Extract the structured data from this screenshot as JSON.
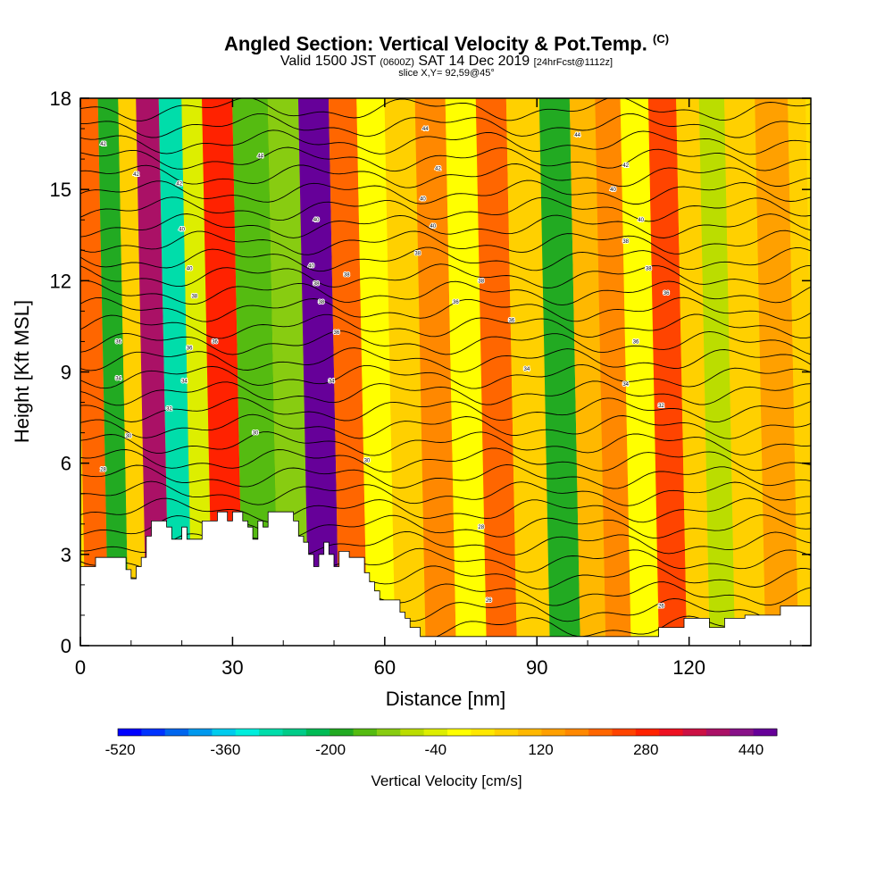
{
  "header": {
    "title": "Angled Section: Vertical Velocity & Pot.Temp.",
    "title_unit": "(C)",
    "valid_prefix": "Valid 1500 JST",
    "valid_zulu": "(0600Z)",
    "valid_date": "SAT 14 Dec 2019",
    "forecast": "[24hrFcst@1112z]",
    "slice": "slice X,Y= 92,59@45°"
  },
  "chart_data": {
    "type": "heatmap",
    "xlabel": "Distance [nm]",
    "ylabel": "Height [Kft MSL]",
    "xlim": [
      0,
      144
    ],
    "ylim": [
      0,
      18
    ],
    "x_ticks": [
      "0",
      "30",
      "60",
      "90",
      "120"
    ],
    "y_ticks": [
      "0",
      "3",
      "6",
      "9",
      "12",
      "15",
      "18"
    ],
    "colorbar": {
      "label": "Vertical Velocity [cm/s]",
      "tick_labels": [
        "-520",
        "-360",
        "-200",
        "-40",
        "120",
        "280",
        "440"
      ],
      "levels": [
        -520,
        440
      ],
      "colors": [
        "#0000ff",
        "#0033ff",
        "#0066ee",
        "#0099ee",
        "#00ccee",
        "#00eedd",
        "#00ddaa",
        "#00cc88",
        "#00bb55",
        "#22aa22",
        "#55bb11",
        "#88cc11",
        "#bbdd00",
        "#ddee00",
        "#ffff00",
        "#ffe800",
        "#ffd000",
        "#ffb800",
        "#ffa000",
        "#ff8800",
        "#ff6600",
        "#ff4400",
        "#ff2200",
        "#ee1122",
        "#cc1144",
        "#aa1166",
        "#881188",
        "#660099"
      ]
    },
    "field_bands": [
      {
        "x": 2,
        "value": 180
      },
      {
        "x": 7,
        "value": -200
      },
      {
        "x": 10,
        "value": 40
      },
      {
        "x": 14,
        "value": 360
      },
      {
        "x": 19,
        "value": -320
      },
      {
        "x": 23,
        "value": -60
      },
      {
        "x": 27,
        "value": 260
      },
      {
        "x": 35,
        "value": -160
      },
      {
        "x": 41,
        "value": -120
      },
      {
        "x": 47,
        "value": 440
      },
      {
        "x": 53,
        "value": 200
      },
      {
        "x": 58,
        "value": -40
      },
      {
        "x": 64,
        "value": 40
      },
      {
        "x": 70,
        "value": 140
      },
      {
        "x": 76,
        "value": -20
      },
      {
        "x": 82,
        "value": 200
      },
      {
        "x": 88,
        "value": 40
      },
      {
        "x": 95,
        "value": -200
      },
      {
        "x": 100,
        "value": 80
      },
      {
        "x": 105,
        "value": 160
      },
      {
        "x": 110,
        "value": -40
      },
      {
        "x": 116,
        "value": 220
      },
      {
        "x": 121,
        "value": 60
      },
      {
        "x": 125,
        "value": -100
      },
      {
        "x": 131,
        "value": 60
      },
      {
        "x": 137,
        "value": 120
      },
      {
        "x": 144,
        "value": 60
      }
    ],
    "terrain": [
      [
        0,
        2.6
      ],
      [
        3,
        2.6
      ],
      [
        3,
        2.9
      ],
      [
        9,
        2.9
      ],
      [
        9,
        2.5
      ],
      [
        10,
        2.5
      ],
      [
        10,
        2.2
      ],
      [
        11,
        2.2
      ],
      [
        11,
        2.6
      ],
      [
        12,
        2.6
      ],
      [
        12,
        2.9
      ],
      [
        13,
        2.9
      ],
      [
        13,
        3.6
      ],
      [
        14,
        3.6
      ],
      [
        14,
        4.1
      ],
      [
        17,
        4.1
      ],
      [
        17,
        3.9
      ],
      [
        18,
        3.9
      ],
      [
        18,
        3.5
      ],
      [
        20,
        3.5
      ],
      [
        20,
        3.9
      ],
      [
        21,
        3.9
      ],
      [
        21,
        3.5
      ],
      [
        24,
        3.5
      ],
      [
        24,
        4.1
      ],
      [
        27,
        4.1
      ],
      [
        27,
        4.4
      ],
      [
        29,
        4.4
      ],
      [
        29,
        4.1
      ],
      [
        30,
        4.1
      ],
      [
        30,
        4.4
      ],
      [
        32,
        4.4
      ],
      [
        32,
        4.1
      ],
      [
        33,
        4.1
      ],
      [
        33,
        3.9
      ],
      [
        34,
        3.9
      ],
      [
        34,
        3.5
      ],
      [
        35,
        3.5
      ],
      [
        35,
        4.1
      ],
      [
        36,
        4.1
      ],
      [
        36,
        3.9
      ],
      [
        37,
        3.9
      ],
      [
        37,
        4.4
      ],
      [
        42,
        4.4
      ],
      [
        42,
        4.1
      ],
      [
        43,
        4.1
      ],
      [
        43,
        3.6
      ],
      [
        44,
        3.6
      ],
      [
        44,
        3.4
      ],
      [
        45,
        3.4
      ],
      [
        45,
        3.0
      ],
      [
        46,
        3.0
      ],
      [
        46,
        2.6
      ],
      [
        47,
        2.6
      ],
      [
        47,
        3.0
      ],
      [
        48,
        3.0
      ],
      [
        48,
        3.4
      ],
      [
        49,
        3.4
      ],
      [
        49,
        3.0
      ],
      [
        50,
        3.0
      ],
      [
        50,
        2.6
      ],
      [
        51,
        2.6
      ],
      [
        51,
        3.1
      ],
      [
        53,
        3.1
      ],
      [
        53,
        2.9
      ],
      [
        56,
        2.9
      ],
      [
        56,
        2.4
      ],
      [
        57,
        2.4
      ],
      [
        57,
        2.1
      ],
      [
        58,
        2.1
      ],
      [
        58,
        1.8
      ],
      [
        59,
        1.8
      ],
      [
        59,
        1.5
      ],
      [
        63,
        1.5
      ],
      [
        63,
        1.1
      ],
      [
        64,
        1.1
      ],
      [
        64,
        0.9
      ],
      [
        65,
        0.9
      ],
      [
        65,
        0.6
      ],
      [
        67,
        0.6
      ],
      [
        67,
        0.3
      ],
      [
        114,
        0.3
      ],
      [
        114,
        0.6
      ],
      [
        119,
        0.6
      ],
      [
        119,
        0.9
      ],
      [
        124,
        0.9
      ],
      [
        124,
        0.6
      ],
      [
        127,
        0.6
      ],
      [
        127,
        0.9
      ],
      [
        131,
        0.9
      ],
      [
        131,
        1.0
      ],
      [
        138,
        1.0
      ],
      [
        138,
        1.3
      ],
      [
        144,
        1.3
      ]
    ],
    "theta_contours": {
      "count": 32,
      "h0": 0.6,
      "spacing": 0.55
    },
    "contour_labels": [
      {
        "x": 4.5,
        "y": 16.5,
        "text": "42"
      },
      {
        "x": 11,
        "y": 15.5,
        "text": "42"
      },
      {
        "x": 19.5,
        "y": 15.2,
        "text": "42"
      },
      {
        "x": 20,
        "y": 13.7,
        "text": "40"
      },
      {
        "x": 21.5,
        "y": 12.4,
        "text": "40"
      },
      {
        "x": 22.5,
        "y": 11.5,
        "text": "38"
      },
      {
        "x": 26.5,
        "y": 10.0,
        "text": "36"
      },
      {
        "x": 21.5,
        "y": 9.8,
        "text": "36"
      },
      {
        "x": 20.5,
        "y": 8.7,
        "text": "34"
      },
      {
        "x": 17.5,
        "y": 7.8,
        "text": "32"
      },
      {
        "x": 7.5,
        "y": 10.0,
        "text": "36"
      },
      {
        "x": 7.5,
        "y": 8.8,
        "text": "34"
      },
      {
        "x": 9.5,
        "y": 6.9,
        "text": "30"
      },
      {
        "x": 4.5,
        "y": 5.8,
        "text": "28"
      },
      {
        "x": 35.5,
        "y": 16.1,
        "text": "44"
      },
      {
        "x": 34.5,
        "y": 7.0,
        "text": "30"
      },
      {
        "x": 46.5,
        "y": 14.0,
        "text": "40"
      },
      {
        "x": 45.5,
        "y": 12.5,
        "text": "40"
      },
      {
        "x": 46.5,
        "y": 11.9,
        "text": "38"
      },
      {
        "x": 47.5,
        "y": 11.3,
        "text": "38"
      },
      {
        "x": 52.5,
        "y": 12.2,
        "text": "38"
      },
      {
        "x": 50.5,
        "y": 10.3,
        "text": "36"
      },
      {
        "x": 49.5,
        "y": 8.7,
        "text": "34"
      },
      {
        "x": 56.5,
        "y": 6.1,
        "text": "30"
      },
      {
        "x": 68,
        "y": 17.0,
        "text": "44"
      },
      {
        "x": 70.5,
        "y": 15.7,
        "text": "42"
      },
      {
        "x": 67.5,
        "y": 14.7,
        "text": "40"
      },
      {
        "x": 69.5,
        "y": 13.8,
        "text": "40"
      },
      {
        "x": 66.5,
        "y": 12.9,
        "text": "38"
      },
      {
        "x": 79,
        "y": 12.0,
        "text": "38"
      },
      {
        "x": 74,
        "y": 11.3,
        "text": "36"
      },
      {
        "x": 85,
        "y": 10.7,
        "text": "36"
      },
      {
        "x": 88,
        "y": 9.1,
        "text": "34"
      },
      {
        "x": 98,
        "y": 16.8,
        "text": "44"
      },
      {
        "x": 107.5,
        "y": 15.8,
        "text": "42"
      },
      {
        "x": 105,
        "y": 15.0,
        "text": "40"
      },
      {
        "x": 110.5,
        "y": 14.0,
        "text": "40"
      },
      {
        "x": 107.5,
        "y": 13.3,
        "text": "38"
      },
      {
        "x": 112,
        "y": 12.4,
        "text": "38"
      },
      {
        "x": 115.5,
        "y": 11.6,
        "text": "36"
      },
      {
        "x": 109.5,
        "y": 10.0,
        "text": "36"
      },
      {
        "x": 107.5,
        "y": 8.6,
        "text": "34"
      },
      {
        "x": 114.5,
        "y": 7.9,
        "text": "32"
      },
      {
        "x": 79,
        "y": 3.9,
        "text": "28"
      },
      {
        "x": 80.5,
        "y": 1.5,
        "text": "26"
      },
      {
        "x": 114.5,
        "y": 1.3,
        "text": "26"
      }
    ]
  }
}
